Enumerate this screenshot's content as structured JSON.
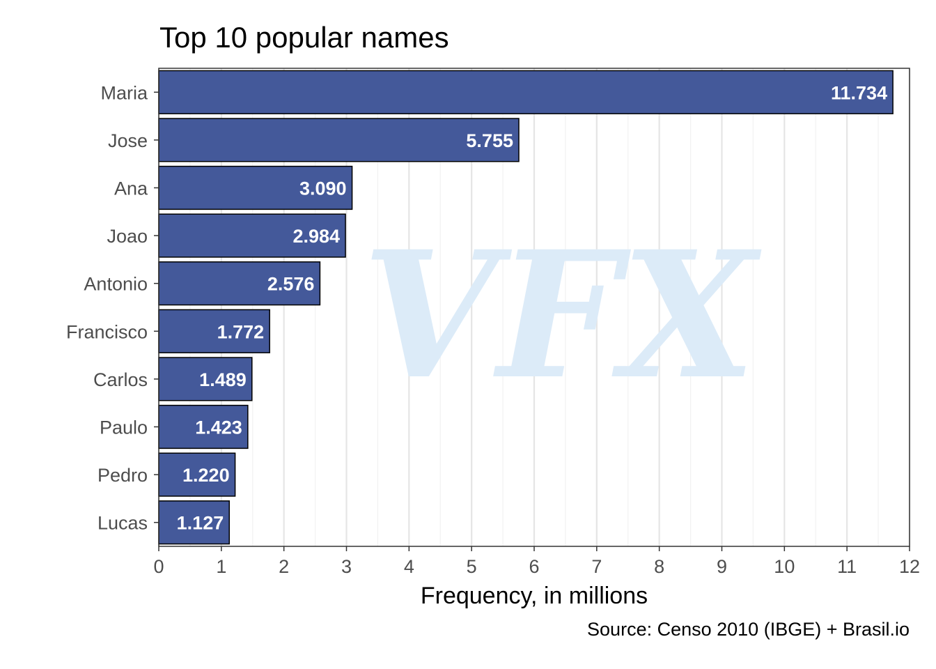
{
  "chart_data": {
    "type": "bar",
    "orientation": "horizontal",
    "title": "Top 10 popular names",
    "xlabel": "Frequency, in millions",
    "ylabel": "",
    "caption": "Source: Censo 2010 (IBGE) + Brasil.io",
    "watermark": "VFX",
    "categories": [
      "Maria",
      "Jose",
      "Ana",
      "Joao",
      "Antonio",
      "Francisco",
      "Carlos",
      "Paulo",
      "Pedro",
      "Lucas"
    ],
    "values": [
      11.734,
      5.755,
      3.09,
      2.984,
      2.576,
      1.772,
      1.489,
      1.423,
      1.22,
      1.127
    ],
    "data_labels": [
      "11.734",
      "5.755",
      "3.090",
      "2.984",
      "2.576",
      "1.772",
      "1.489",
      "1.423",
      "1.220",
      "1.127"
    ],
    "xlim": [
      0,
      12
    ],
    "xticks": [
      0,
      1,
      2,
      3,
      4,
      5,
      6,
      7,
      8,
      9,
      10,
      11,
      12
    ],
    "grid": true,
    "legend": "none",
    "colors": {
      "bar": "#44599a",
      "bar_border": "#000000",
      "grid": "#e5e5e5",
      "label": "#ffffff",
      "watermark": "#dcebf8"
    }
  }
}
